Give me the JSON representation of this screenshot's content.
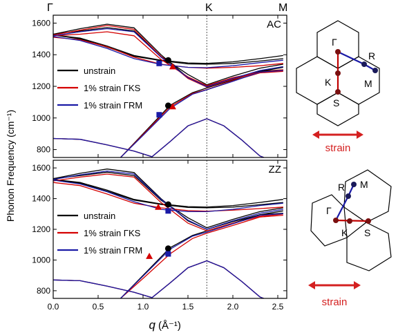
{
  "chart_data": [
    {
      "panel": "AC",
      "type": "line",
      "label": "AC",
      "xlabel": "q",
      "xlabel_unit": "(Å⁻¹)",
      "ylabel": "Phonon Frequency (cm⁻¹)",
      "xlim": [
        0,
        2.6
      ],
      "ylim": [
        750,
        1650
      ],
      "xticks": [
        0.0,
        0.5,
        1.0,
        1.5,
        2.0,
        2.5
      ],
      "yticks": [
        800,
        1000,
        1200,
        1400,
        1600
      ],
      "high_symmetry_points": [
        {
          "label": "Γ",
          "q": 0.0
        },
        {
          "label": "K",
          "q": 1.71
        },
        {
          "label": "M",
          "q": 2.56
        }
      ],
      "legend": [
        "unstrain",
        "1% strain ΓKS",
        "1% strain ΓRM"
      ],
      "colors": {
        "unstrain": "#000000",
        "gks": "#d40000",
        "grm": "#1a1aa6"
      },
      "series": [
        {
          "name": "unstrain",
          "color": "#000000",
          "branches": [
            {
              "x": [
                0,
                0.3,
                0.6,
                0.9,
                1.2,
                1.5,
                1.71,
                2.0,
                2.3,
                2.56
              ],
              "y": [
                1530,
                1565,
                1593,
                1570,
                1400,
                1255,
                1200,
                1250,
                1295,
                1320
              ]
            },
            {
              "x": [
                0,
                0.3,
                0.6,
                0.9,
                1.2,
                1.5,
                1.71,
                2.0,
                2.3,
                2.56
              ],
              "y": [
                1530,
                1550,
                1572,
                1550,
                1390,
                1275,
                1210,
                1265,
                1315,
                1340
              ]
            },
            {
              "x": [
                0,
                0.3,
                0.6,
                0.9,
                1.2,
                1.5,
                1.71,
                2.0,
                2.3,
                2.56
              ],
              "y": [
                1525,
                1505,
                1455,
                1395,
                1365,
                1348,
                1345,
                1355,
                1375,
                1395
              ]
            },
            {
              "x": [
                0,
                0.3,
                0.6,
                0.9,
                1.2,
                1.5,
                1.71,
                2.0,
                2.3,
                2.56
              ],
              "y": [
                1525,
                1500,
                1448,
                1390,
                1362,
                1342,
                1340,
                1345,
                1360,
                1375
              ]
            },
            {
              "x": [
                0.75,
                1.0,
                1.3,
                1.55,
                1.71,
                2.0,
                2.3,
                2.56
              ],
              "y": [
                750,
                900,
                1080,
                1160,
                1190,
                1240,
                1295,
                1305
              ]
            },
            {
              "x": [
                0,
                0.3,
                0.6,
                0.9,
                1.1,
                1.3,
                1.5,
                1.71,
                1.9,
                2.1,
                2.3,
                2.56
              ],
              "y": [
                870,
                865,
                830,
                790,
                755,
                850,
                950,
                995,
                950,
                860,
                760,
                700
              ]
            }
          ]
        },
        {
          "name": "1% strain ΓKS",
          "color": "#d40000",
          "branches": [
            {
              "x": [
                0,
                0.3,
                0.6,
                0.9,
                1.2,
                1.5,
                1.71,
                2.0,
                2.3,
                2.56
              ],
              "y": [
                1525,
                1555,
                1585,
                1560,
                1390,
                1250,
                1195,
                1245,
                1290,
                1305
              ]
            },
            {
              "x": [
                0,
                0.3,
                0.6,
                0.9,
                1.2,
                1.5,
                1.71,
                2.0,
                2.3,
                2.56
              ],
              "y": [
                1520,
                1530,
                1545,
                1520,
                1370,
                1260,
                1205,
                1255,
                1290,
                1300
              ]
            },
            {
              "x": [
                0,
                0.3,
                0.6,
                0.9,
                1.2,
                1.5,
                1.71,
                2.0,
                2.3,
                2.56
              ],
              "y": [
                1510,
                1495,
                1450,
                1385,
                1340,
                1320,
                1315,
                1320,
                1330,
                1345
              ]
            },
            {
              "x": [
                0.75,
                1.0,
                1.3,
                1.55,
                1.71,
                2.0,
                2.3,
                2.56
              ],
              "y": [
                750,
                895,
                1070,
                1155,
                1180,
                1235,
                1285,
                1295
              ]
            },
            {
              "x": [
                0,
                0.3,
                0.6,
                0.9,
                1.1,
                1.3,
                1.5,
                1.71,
                1.9,
                2.1,
                2.3,
                2.56
              ],
              "y": [
                870,
                865,
                830,
                790,
                755,
                850,
                950,
                995,
                950,
                860,
                760,
                700
              ]
            }
          ]
        },
        {
          "name": "1% strain ΓRM",
          "color": "#1a1aa6",
          "branches": [
            {
              "x": [
                0,
                0.3,
                0.6,
                0.9,
                1.2,
                1.5,
                1.71,
                2.0,
                2.3,
                2.56
              ],
              "y": [
                1520,
                1545,
                1565,
                1545,
                1385,
                1255,
                1198,
                1250,
                1300,
                1325
              ]
            },
            {
              "x": [
                0,
                0.3,
                0.6,
                0.9,
                1.2,
                1.5,
                1.71,
                2.0,
                2.3,
                2.56
              ],
              "y": [
                1515,
                1490,
                1440,
                1375,
                1338,
                1320,
                1318,
                1330,
                1350,
                1365
              ]
            },
            {
              "x": [
                0.75,
                1.0,
                1.3,
                1.55,
                1.71,
                2.0,
                2.3,
                2.56
              ],
              "y": [
                750,
                890,
                1060,
                1150,
                1178,
                1232,
                1290,
                1300
              ]
            },
            {
              "x": [
                0,
                0.3,
                0.6,
                0.9,
                1.1,
                1.3,
                1.5,
                1.71,
                1.9,
                2.1,
                2.3,
                2.56
              ],
              "y": [
                870,
                865,
                830,
                790,
                755,
                850,
                950,
                995,
                950,
                860,
                760,
                700
              ]
            }
          ]
        }
      ],
      "markers": [
        {
          "series": "unstrain",
          "shape": "circle",
          "x": 1.28,
          "y": 1365
        },
        {
          "series": "unstrain",
          "shape": "circle",
          "x": 1.28,
          "y": 1078
        },
        {
          "series": "1% strain ΓKS",
          "shape": "triangle",
          "x": 1.33,
          "y": 1325
        },
        {
          "series": "1% strain ΓKS",
          "shape": "triangle",
          "x": 1.33,
          "y": 1072
        },
        {
          "series": "1% strain ΓRM",
          "shape": "square",
          "x": 1.18,
          "y": 1345
        },
        {
          "series": "1% strain ΓRM",
          "shape": "square",
          "x": 1.18,
          "y": 1020
        }
      ]
    },
    {
      "panel": "ZZ",
      "type": "line",
      "label": "ZZ",
      "xlabel": "q",
      "xlabel_unit": "(Å⁻¹)",
      "ylabel": "Phonon Frequency (cm⁻¹)",
      "xlim": [
        0,
        2.6
      ],
      "ylim": [
        750,
        1650
      ],
      "xticks": [
        0.0,
        0.5,
        1.0,
        1.5,
        2.0,
        2.5
      ],
      "yticks": [
        800,
        1000,
        1200,
        1400,
        1600
      ],
      "legend": [
        "unstrain",
        "1% strain ΓKS",
        "1% strain ΓRM"
      ],
      "series": [
        {
          "name": "unstrain",
          "color": "#000000",
          "branches": [
            {
              "x": [
                0,
                0.3,
                0.6,
                0.9,
                1.2,
                1.5,
                1.71,
                2.0,
                2.3,
                2.56
              ],
              "y": [
                1530,
                1565,
                1593,
                1570,
                1400,
                1255,
                1200,
                1250,
                1295,
                1320
              ]
            },
            {
              "x": [
                0,
                0.3,
                0.6,
                0.9,
                1.2,
                1.5,
                1.71,
                2.0,
                2.3,
                2.56
              ],
              "y": [
                1530,
                1550,
                1572,
                1550,
                1390,
                1275,
                1210,
                1265,
                1315,
                1340
              ]
            },
            {
              "x": [
                0,
                0.3,
                0.6,
                0.9,
                1.2,
                1.5,
                1.71,
                2.0,
                2.3,
                2.56
              ],
              "y": [
                1525,
                1505,
                1455,
                1395,
                1365,
                1348,
                1345,
                1355,
                1375,
                1395
              ]
            },
            {
              "x": [
                0,
                0.3,
                0.6,
                0.9,
                1.2,
                1.5,
                1.71,
                2.0,
                2.3,
                2.56
              ],
              "y": [
                1525,
                1500,
                1448,
                1390,
                1362,
                1342,
                1340,
                1345,
                1360,
                1375
              ]
            },
            {
              "x": [
                0.75,
                1.0,
                1.3,
                1.55,
                1.71,
                2.0,
                2.3,
                2.56
              ],
              "y": [
                750,
                900,
                1080,
                1160,
                1190,
                1240,
                1295,
                1305
              ]
            },
            {
              "x": [
                0,
                0.3,
                0.6,
                0.9,
                1.1,
                1.3,
                1.5,
                1.71,
                1.9,
                2.1,
                2.3,
                2.56
              ],
              "y": [
                870,
                865,
                830,
                790,
                755,
                850,
                950,
                995,
                950,
                860,
                760,
                700
              ]
            }
          ]
        },
        {
          "name": "1% strain ΓKS",
          "color": "#d40000",
          "branches": [
            {
              "x": [
                0,
                0.3,
                0.6,
                0.9,
                1.2,
                1.5,
                1.71,
                2.0,
                2.3,
                2.56
              ],
              "y": [
                1515,
                1540,
                1560,
                1540,
                1375,
                1240,
                1190,
                1240,
                1285,
                1300
              ]
            },
            {
              "x": [
                0,
                0.3,
                0.6,
                0.9,
                1.2,
                1.5,
                1.71,
                2.0,
                2.3,
                2.56
              ],
              "y": [
                1505,
                1485,
                1430,
                1370,
                1340,
                1322,
                1318,
                1325,
                1335,
                1345
              ]
            },
            {
              "x": [
                0.75,
                1.0,
                1.3,
                1.55,
                1.71,
                2.0,
                2.3,
                2.56
              ],
              "y": [
                750,
                880,
                1040,
                1140,
                1175,
                1225,
                1280,
                1292
              ]
            },
            {
              "x": [
                0,
                0.3,
                0.6,
                0.9,
                1.1,
                1.3,
                1.5,
                1.71,
                1.9,
                2.1,
                2.3,
                2.56
              ],
              "y": [
                870,
                865,
                830,
                790,
                755,
                850,
                950,
                995,
                950,
                860,
                760,
                700
              ]
            }
          ]
        },
        {
          "name": "1% strain ΓRM",
          "color": "#1a1aa6",
          "branches": [
            {
              "x": [
                0,
                0.3,
                0.6,
                0.9,
                1.2,
                1.5,
                1.71,
                2.0,
                2.3,
                2.56
              ],
              "y": [
                1525,
                1555,
                1580,
                1560,
                1395,
                1260,
                1200,
                1255,
                1305,
                1330
              ]
            },
            {
              "x": [
                0,
                0.3,
                0.6,
                0.9,
                1.2,
                1.5,
                1.71,
                2.0,
                2.3,
                2.56
              ],
              "y": [
                1520,
                1495,
                1445,
                1380,
                1330,
                1315,
                1315,
                1330,
                1355,
                1370
              ]
            },
            {
              "x": [
                0.75,
                1.0,
                1.3,
                1.55,
                1.71,
                2.0,
                2.3,
                2.56
              ],
              "y": [
                750,
                895,
                1070,
                1155,
                1182,
                1236,
                1292,
                1302
              ]
            },
            {
              "x": [
                0,
                0.3,
                0.6,
                0.9,
                1.1,
                1.3,
                1.5,
                1.71,
                1.9,
                2.1,
                2.3,
                2.56
              ],
              "y": [
                870,
                865,
                830,
                790,
                755,
                850,
                950,
                995,
                950,
                860,
                760,
                700
              ]
            }
          ]
        }
      ],
      "markers": [
        {
          "series": "unstrain",
          "shape": "circle",
          "x": 1.28,
          "y": 1362
        },
        {
          "series": "unstrain",
          "shape": "circle",
          "x": 1.28,
          "y": 1075
        },
        {
          "series": "1% strain ΓKS",
          "shape": "triangle",
          "x": 1.17,
          "y": 1345
        },
        {
          "series": "1% strain ΓKS",
          "shape": "triangle",
          "x": 1.07,
          "y": 1025
        },
        {
          "series": "1% strain ΓRM",
          "shape": "square",
          "x": 1.28,
          "y": 1320
        },
        {
          "series": "1% strain ΓRM",
          "shape": "square",
          "x": 1.28,
          "y": 1040
        }
      ]
    }
  ],
  "diagrams": {
    "top": {
      "labels": [
        "Γ",
        "R",
        "K",
        "M",
        "S"
      ],
      "caption": "strain"
    },
    "bottom": {
      "labels": [
        "R",
        "M",
        "Γ",
        "K",
        "S"
      ],
      "caption": "strain"
    }
  },
  "top_labels": {
    "gamma": "Γ",
    "k": "K",
    "m": "M"
  }
}
